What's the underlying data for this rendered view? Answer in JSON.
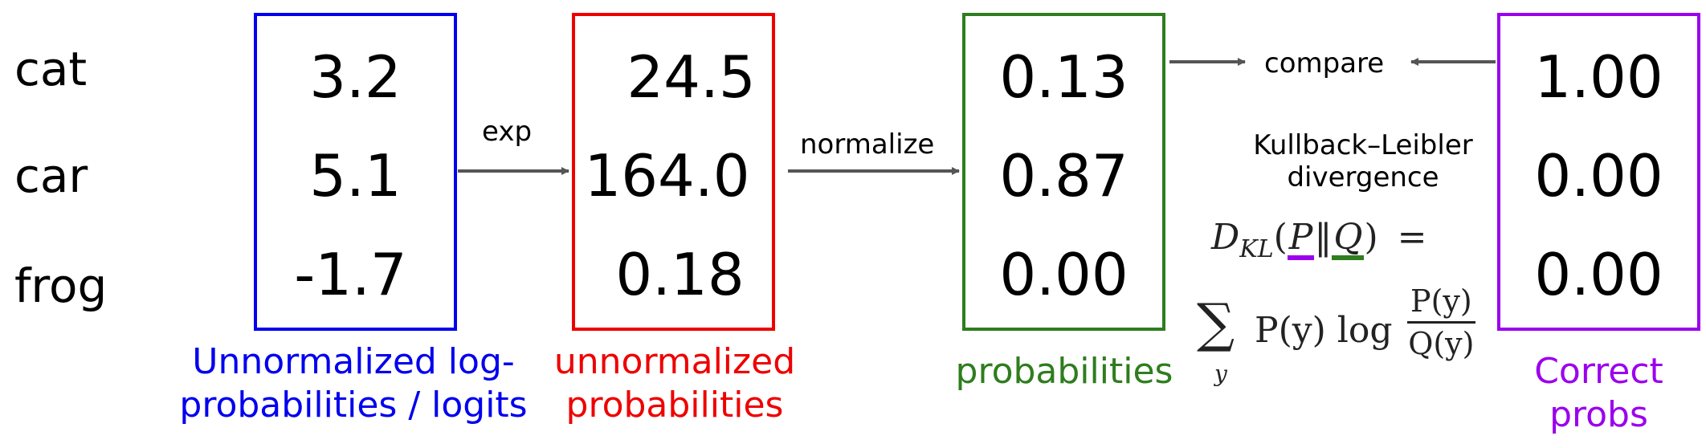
{
  "row_labels": [
    "cat",
    "car",
    "frog"
  ],
  "columns": {
    "logits": {
      "values": [
        "3.2",
        "5.1",
        "-1.7"
      ],
      "caption_line1": "Unnormalized log-",
      "caption_line2": "probabilities / logits",
      "color": "#0000ee"
    },
    "unnormalized": {
      "values": [
        "24.5",
        "164.0",
        "0.18"
      ],
      "caption_line1": "unnormalized",
      "caption_line2": "probabilities",
      "color": "#ee0000"
    },
    "probabilities": {
      "values": [
        "0.13",
        "0.87",
        "0.00"
      ],
      "caption_line1": "probabilities",
      "color": "#2e7d1e"
    },
    "correct": {
      "values": [
        "1.00",
        "0.00",
        "0.00"
      ],
      "caption_line1": "Correct",
      "caption_line2": "probs",
      "color": "#9b00ee"
    }
  },
  "arrows": {
    "exp_label": "exp",
    "normalize_label": "normalize",
    "compare_label": "compare"
  },
  "kl": {
    "title_line1": "Kullback–Leibler",
    "title_line2": "divergence",
    "lhs_prefix": "D",
    "lhs_subscript": "KL",
    "p": "P",
    "separator": "‖",
    "q": "Q",
    "equals": "=",
    "sum_symbol": "∑",
    "sum_index": "y",
    "term": "P(y) log",
    "frac_num": "P(y)",
    "frac_den": "Q(y)",
    "underline_p_color": "#9b00ee",
    "underline_q_color": "#2e7d1e"
  }
}
